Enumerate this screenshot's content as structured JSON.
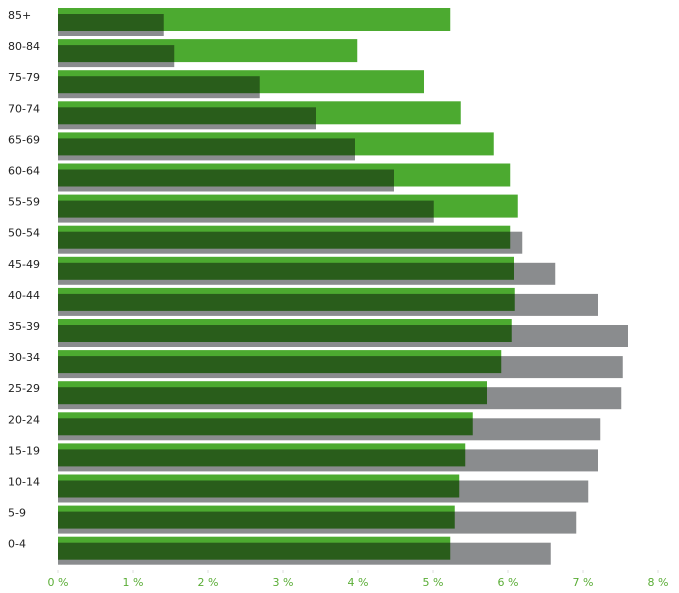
{
  "chart_data": {
    "type": "bar",
    "orientation": "horizontal",
    "categories": [
      "85+",
      "80-84",
      "75-79",
      "70-74",
      "65-69",
      "60-64",
      "55-59",
      "50-54",
      "45-49",
      "40-44",
      "35-39",
      "30-34",
      "25-29",
      "20-24",
      "15-19",
      "10-14",
      "5-9",
      "0-4"
    ],
    "series": [
      {
        "color": "#4caa30",
        "values": [
          5.23,
          3.99,
          4.88,
          5.37,
          5.81,
          6.03,
          6.13,
          6.03,
          6.08,
          6.09,
          6.05,
          5.91,
          5.72,
          5.53,
          5.43,
          5.35,
          5.29,
          5.23
        ]
      },
      {
        "color": "#8a8c8e",
        "values": [
          1.41,
          1.55,
          2.69,
          3.44,
          3.96,
          4.48,
          5.01,
          6.19,
          6.63,
          7.2,
          7.6,
          7.53,
          7.51,
          7.23,
          7.2,
          7.07,
          6.91,
          6.57
        ]
      }
    ],
    "xlim": [
      0,
      8
    ],
    "xticks": [
      {
        "value": 0,
        "label": "0 %"
      },
      {
        "value": 1,
        "label": "1 %"
      },
      {
        "value": 2,
        "label": "2 %"
      },
      {
        "value": 3,
        "label": "3 %"
      },
      {
        "value": 4,
        "label": "4 %"
      },
      {
        "value": 5,
        "label": "5 %"
      },
      {
        "value": 6,
        "label": "6 %"
      },
      {
        "value": 7,
        "label": "7 %"
      },
      {
        "value": 8,
        "label": "8 %"
      }
    ]
  }
}
